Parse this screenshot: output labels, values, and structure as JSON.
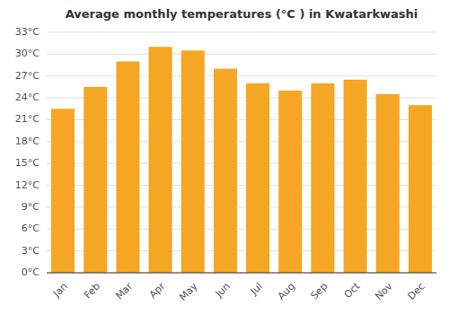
{
  "chart_data": {
    "type": "bar",
    "title": "Average monthly temperatures (°C ) in Kwatarkwashi",
    "categories": [
      "Jan",
      "Feb",
      "Mar",
      "Apr",
      "May",
      "Jun",
      "Jul",
      "Aug",
      "Sep",
      "Oct",
      "Nov",
      "Dec"
    ],
    "values": [
      22.5,
      25.5,
      29.0,
      31.0,
      30.5,
      28.0,
      26.0,
      25.0,
      26.0,
      26.5,
      24.5,
      23.0
    ],
    "color": "#F5A623",
    "ylim": [
      0,
      33
    ],
    "yticks": [
      {
        "value": 0,
        "label": "0°C"
      },
      {
        "value": 3,
        "label": "3°C"
      },
      {
        "value": 6,
        "label": "6°C"
      },
      {
        "value": 9,
        "label": "9°C"
      },
      {
        "value": 12,
        "label": "12°C"
      },
      {
        "value": 15,
        "label": "15°C"
      },
      {
        "value": 18,
        "label": "18°C"
      },
      {
        "value": 21,
        "label": "21°C"
      },
      {
        "value": 24,
        "label": "24°C"
      },
      {
        "value": 27,
        "label": "27°C"
      },
      {
        "value": 30,
        "label": "30°C"
      },
      {
        "value": 33,
        "label": "33°C"
      }
    ],
    "grid": true
  }
}
